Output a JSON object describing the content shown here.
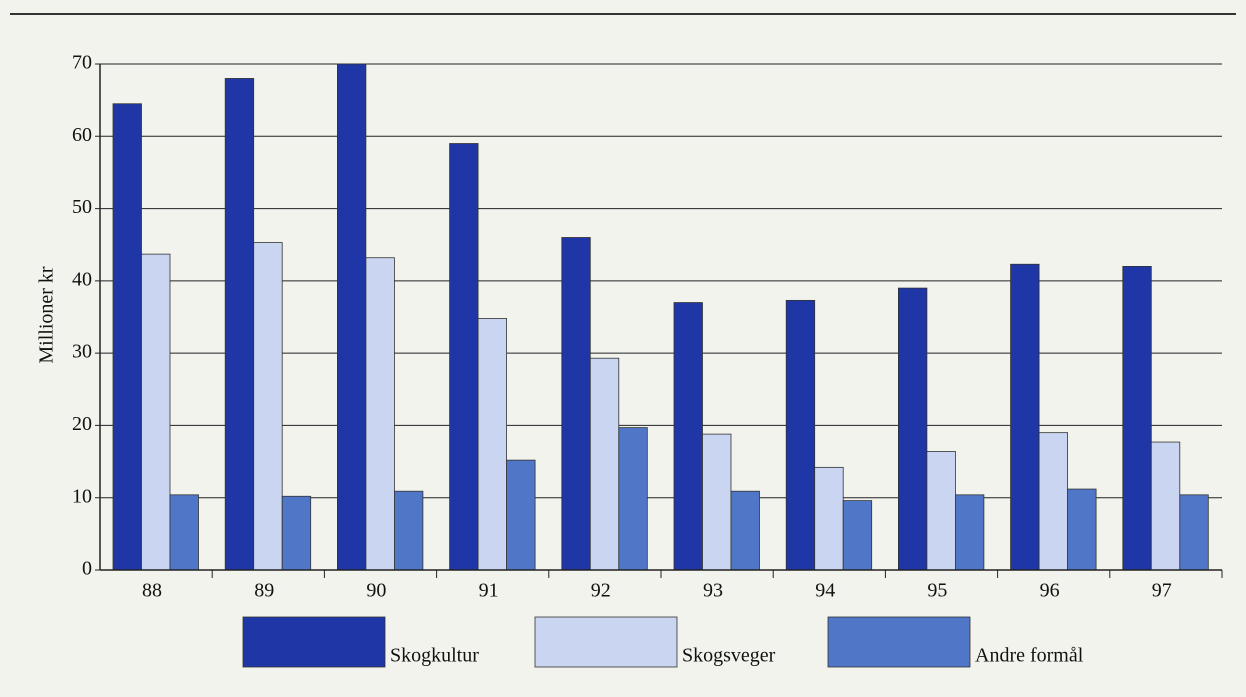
{
  "chart_data": {
    "type": "bar",
    "y_label": "Millioner kr",
    "categories": [
      "88",
      "89",
      "90",
      "91",
      "92",
      "93",
      "94",
      "95",
      "96",
      "97"
    ],
    "series": [
      {
        "name": "Skogkultur",
        "color": "#1f36a6",
        "values": [
          64.5,
          68,
          70,
          59,
          46,
          37,
          37.3,
          39,
          42.3,
          42
        ]
      },
      {
        "name": "Skogsveger",
        "color": "#c9d5f1",
        "values": [
          43.7,
          45.3,
          43.2,
          34.8,
          29.3,
          18.8,
          14.2,
          16.4,
          19,
          17.7
        ]
      },
      {
        "name": "Andre formål",
        "color": "#5076c8",
        "values": [
          10.4,
          10.2,
          10.9,
          15.2,
          19.7,
          10.9,
          9.6,
          10.4,
          11.2,
          10.4
        ]
      }
    ],
    "ylim": [
      0,
      70
    ],
    "yticks": [
      0,
      10,
      20,
      30,
      40,
      50,
      60,
      70
    ],
    "grid": true,
    "legend": "bottom"
  }
}
